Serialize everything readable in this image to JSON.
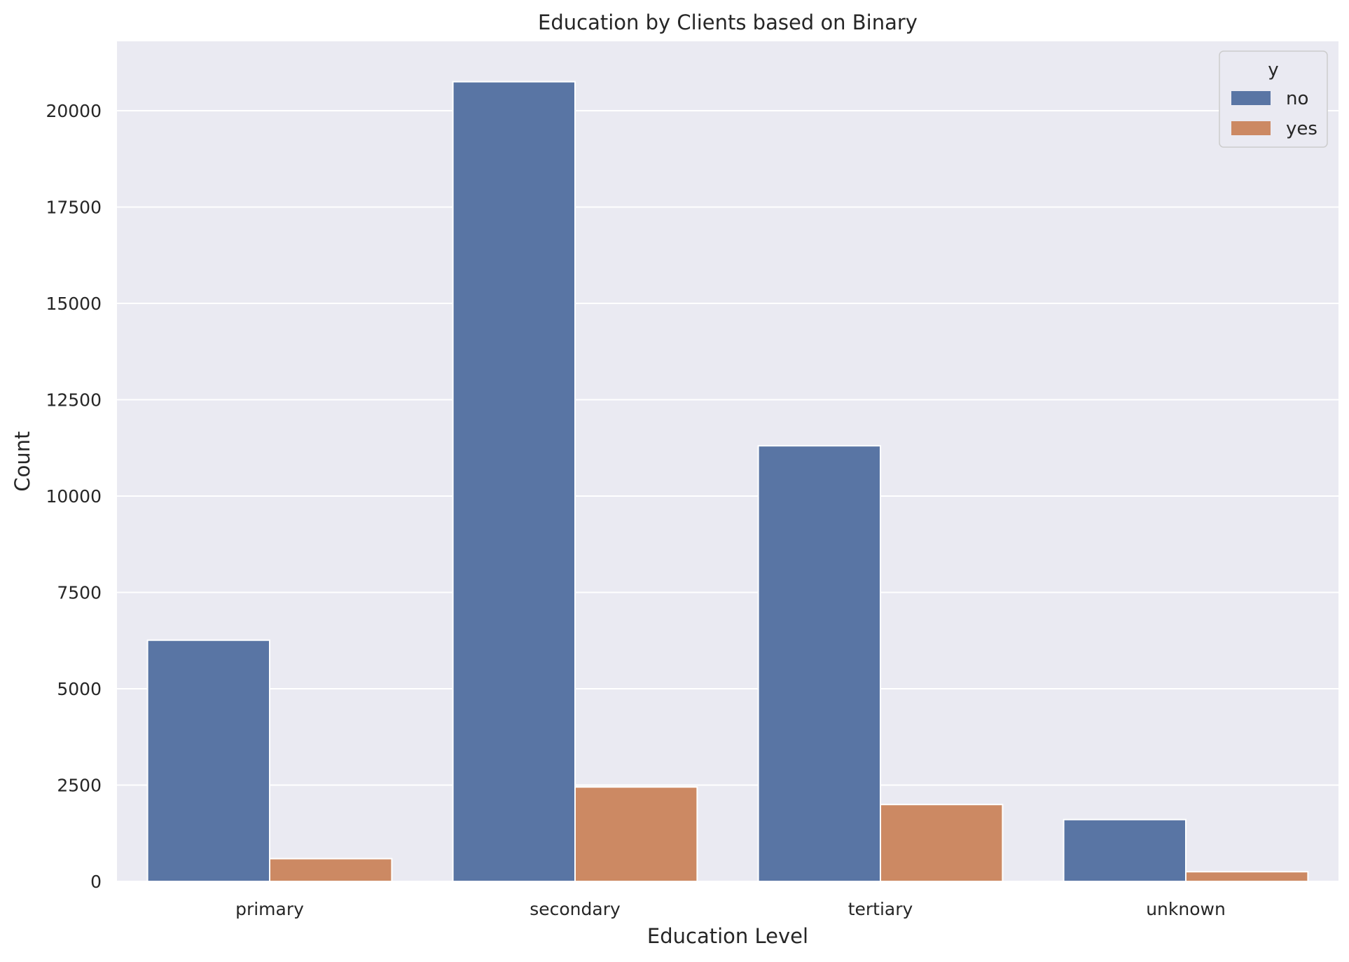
{
  "chart_data": {
    "type": "bar",
    "title": "Education by Clients based on Binary",
    "xlabel": "Education Level",
    "ylabel": "Count",
    "categories": [
      "primary",
      "secondary",
      "tertiary",
      "unknown"
    ],
    "series": [
      {
        "name": "no",
        "color": "#5975a4",
        "values": [
          6260,
          20752,
          11305,
          1605
        ]
      },
      {
        "name": "yes",
        "color": "#cc8963",
        "values": [
          591,
          2450,
          1996,
          252
        ]
      }
    ],
    "ylim": [
      0,
      21800
    ],
    "yticks": [
      0,
      2500,
      5000,
      7500,
      10000,
      12500,
      15000,
      17500,
      20000
    ],
    "grid": true,
    "legend": {
      "title": "y",
      "position": "top-right"
    },
    "background_color": "#eaeaf2",
    "grid_color": "#ffffff"
  }
}
